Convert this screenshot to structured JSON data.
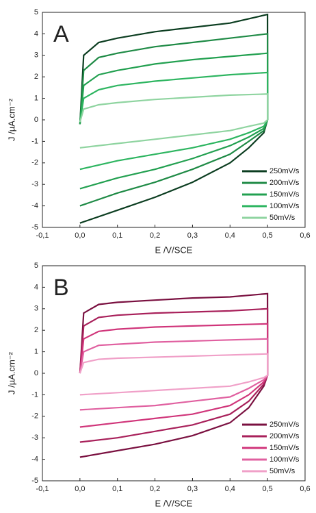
{
  "chart_data": [
    {
      "type": "line",
      "panel": "A",
      "xlabel": "E  /V/SCE",
      "ylabel": "J  /µA.cm⁻²",
      "xlim": [
        -0.1,
        0.6
      ],
      "ylim": [
        -5,
        5
      ],
      "xticks": [
        {
          "value": -0.1,
          "label": "-0,1"
        },
        {
          "value": 0,
          "label": "0,0"
        },
        {
          "value": 0.1,
          "label": "0,1"
        },
        {
          "value": 0.2,
          "label": "0,2"
        },
        {
          "value": 0.3,
          "label": "0,3"
        },
        {
          "value": 0.4,
          "label": "0,4"
        },
        {
          "value": 0.5,
          "label": "0,5"
        },
        {
          "value": 0.6,
          "label": "0,6"
        }
      ],
      "yticks": [
        -5,
        -4,
        -3,
        -2,
        -1,
        0,
        1,
        2,
        3,
        4,
        5
      ],
      "x": [
        0,
        0.01,
        0.05,
        0.1,
        0.2,
        0.3,
        0.4,
        0.5,
        0.5,
        0.49,
        0.45,
        0.4,
        0.3,
        0.2,
        0.1,
        0
      ],
      "legend": "lower right",
      "series": [
        {
          "name": "250mV/s",
          "color": "#0b3d20",
          "values": [
            -0.2,
            3.0,
            3.6,
            3.8,
            4.1,
            4.3,
            4.5,
            4.9,
            0,
            -0.6,
            -1.3,
            -2.0,
            -2.9,
            -3.6,
            -4.2,
            -4.8
          ]
        },
        {
          "name": "200mV/s",
          "color": "#1e8a45",
          "values": [
            -0.2,
            2.3,
            2.9,
            3.1,
            3.4,
            3.6,
            3.8,
            4.0,
            0,
            -0.5,
            -1.0,
            -1.6,
            -2.3,
            -2.9,
            -3.4,
            -4.0
          ]
        },
        {
          "name": "150mV/s",
          "color": "#22a050",
          "values": [
            -0.2,
            1.6,
            2.1,
            2.3,
            2.6,
            2.8,
            2.95,
            3.1,
            0,
            -0.4,
            -0.8,
            -1.2,
            -1.8,
            -2.3,
            -2.7,
            -3.2
          ]
        },
        {
          "name": "100mV/s",
          "color": "#2db560",
          "values": [
            -0.1,
            1.0,
            1.4,
            1.6,
            1.8,
            1.95,
            2.1,
            2.2,
            0,
            -0.3,
            -0.6,
            -0.9,
            -1.3,
            -1.6,
            -1.9,
            -2.3
          ]
        },
        {
          "name": "50mV/s",
          "color": "#8fd4a0",
          "values": [
            -0.1,
            0.5,
            0.7,
            0.8,
            0.95,
            1.05,
            1.15,
            1.2,
            0,
            -0.15,
            -0.3,
            -0.5,
            -0.7,
            -0.9,
            -1.1,
            -1.3
          ]
        }
      ]
    },
    {
      "type": "line",
      "panel": "B",
      "xlabel": "E  /V/SCE",
      "ylabel": "J  /µA.cm⁻²",
      "xlim": [
        -0.1,
        0.6
      ],
      "ylim": [
        -5,
        5
      ],
      "xticks": [
        {
          "value": -0.1,
          "label": "-0,1"
        },
        {
          "value": 0,
          "label": "0,0"
        },
        {
          "value": 0.1,
          "label": "0,1"
        },
        {
          "value": 0.2,
          "label": "0,2"
        },
        {
          "value": 0.3,
          "label": "0,3"
        },
        {
          "value": 0.4,
          "label": "0,4"
        },
        {
          "value": 0.5,
          "label": "0,5"
        },
        {
          "value": 0.6,
          "label": "0,6"
        }
      ],
      "yticks": [
        -5,
        -4,
        -3,
        -2,
        -1,
        0,
        1,
        2,
        3,
        4,
        5
      ],
      "x": [
        0,
        0.01,
        0.05,
        0.1,
        0.2,
        0.3,
        0.4,
        0.5,
        0.5,
        0.49,
        0.45,
        0.4,
        0.3,
        0.2,
        0.1,
        0
      ],
      "legend": "lower right",
      "series": [
        {
          "name": "250mV/s",
          "color": "#7a1040",
          "values": [
            0,
            2.8,
            3.2,
            3.3,
            3.4,
            3.5,
            3.55,
            3.7,
            -0.1,
            -0.6,
            -1.6,
            -2.3,
            -2.9,
            -3.3,
            -3.6,
            -3.9
          ]
        },
        {
          "name": "200mV/s",
          "color": "#a8205a",
          "values": [
            0,
            2.2,
            2.6,
            2.7,
            2.8,
            2.85,
            2.9,
            3.0,
            -0.1,
            -0.5,
            -1.3,
            -1.9,
            -2.4,
            -2.7,
            -3.0,
            -3.2
          ]
        },
        {
          "name": "150mV/s",
          "color": "#d0357a",
          "values": [
            0,
            1.6,
            1.95,
            2.05,
            2.15,
            2.2,
            2.25,
            2.3,
            -0.1,
            -0.4,
            -1.0,
            -1.5,
            -1.9,
            -2.1,
            -2.3,
            -2.5
          ]
        },
        {
          "name": "100mV/s",
          "color": "#e060a0",
          "values": [
            0,
            1.0,
            1.3,
            1.35,
            1.45,
            1.5,
            1.55,
            1.6,
            -0.1,
            -0.3,
            -0.7,
            -1.1,
            -1.3,
            -1.5,
            -1.6,
            -1.7
          ]
        },
        {
          "name": "50mV/s",
          "color": "#f0a0c8",
          "values": [
            0,
            0.5,
            0.65,
            0.7,
            0.75,
            0.8,
            0.85,
            0.9,
            -0.1,
            -0.2,
            -0.4,
            -0.6,
            -0.7,
            -0.8,
            -0.9,
            -1.0
          ]
        }
      ]
    }
  ]
}
